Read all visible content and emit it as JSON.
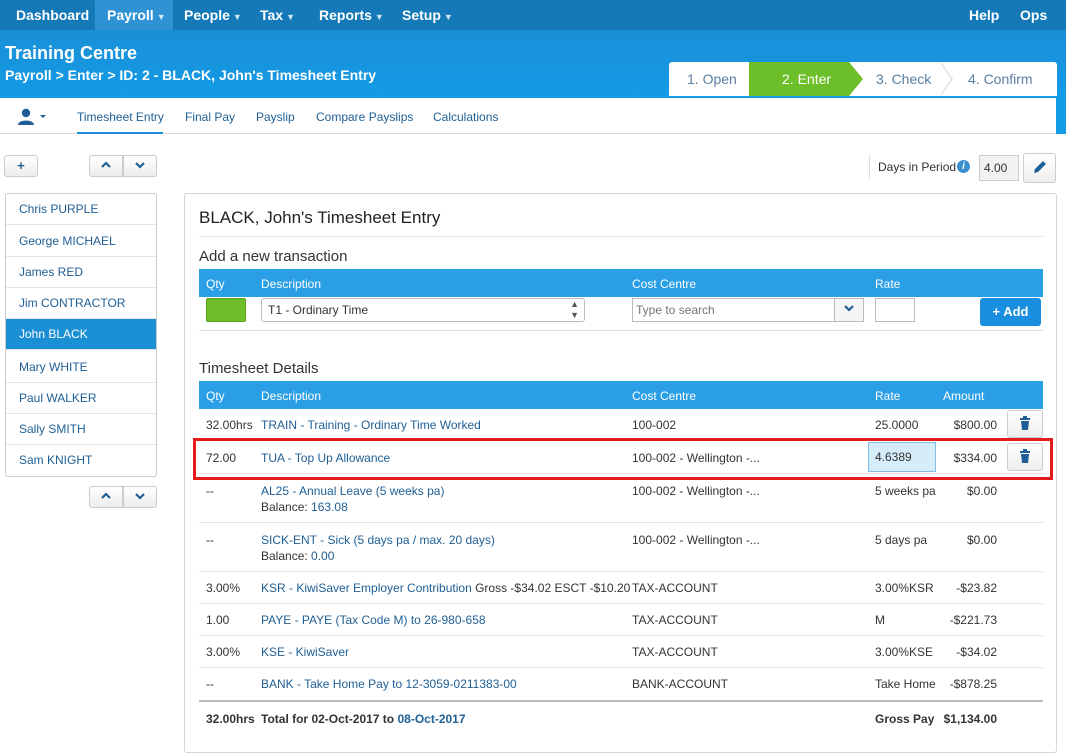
{
  "topnav": {
    "items": [
      {
        "label": "Dashboard",
        "has_caret": false
      },
      {
        "label": "Payroll",
        "has_caret": true
      },
      {
        "label": "People",
        "has_caret": true
      },
      {
        "label": "Tax",
        "has_caret": true
      },
      {
        "label": "Reports",
        "has_caret": true
      },
      {
        "label": "Setup",
        "has_caret": true
      }
    ],
    "right_items": [
      "Help",
      "Ops"
    ]
  },
  "header": {
    "title": "Training Centre",
    "breadcrumb": "Payroll > Enter > ID: 2 - BLACK, John's Timesheet Entry"
  },
  "steps": [
    "1. Open",
    "2. Enter",
    "3. Check",
    "4. Confirm"
  ],
  "subnav": {
    "tabs": [
      "Timesheet Entry",
      "Final Pay",
      "Payslip",
      "Compare Payslips",
      "Calculations"
    ]
  },
  "days_in_period": {
    "label": "Days in Period",
    "value": "4.00"
  },
  "employees": [
    "Chris PURPLE",
    "George MICHAEL",
    "James RED",
    "Jim CONTRACTOR",
    "John BLACK",
    "Mary WHITE",
    "Paul WALKER",
    "Sally SMITH",
    "Sam KNIGHT"
  ],
  "page_title": "BLACK, John's Timesheet Entry",
  "add_transaction": {
    "title": "Add a new transaction",
    "headers": {
      "qty": "Qty",
      "description": "Description",
      "cost_centre": "Cost Centre",
      "rate": "Rate"
    },
    "description_value": "T1 - Ordinary Time",
    "cost_centre_placeholder": "Type to search",
    "add_label": "+ Add"
  },
  "timesheet": {
    "title": "Timesheet Details",
    "headers": {
      "qty": "Qty",
      "description": "Description",
      "cost_centre": "Cost Centre",
      "rate": "Rate",
      "amount": "Amount"
    },
    "rows": [
      {
        "qty": "32.00hrs",
        "desc": "TRAIN - Training - Ordinary Time Worked",
        "desc_extra": "",
        "balance": "",
        "cost_centre": "100-002",
        "rate": "25.0000",
        "amount": "$800.00"
      },
      {
        "qty": "72.00",
        "desc": "TUA - Top Up Allowance",
        "desc_extra": "",
        "balance": "",
        "cost_centre": "100-002 - Wellington -...",
        "rate": "4.6389",
        "amount": "$334.00"
      },
      {
        "qty": "--",
        "desc": "AL25 - Annual Leave (5 weeks pa)",
        "desc_extra": "",
        "balance": "163.08",
        "cost_centre": "100-002 - Wellington -...",
        "rate": "5 weeks pa",
        "amount": "$0.00"
      },
      {
        "qty": "--",
        "desc": "SICK-ENT - Sick (5 days pa / max. 20 days)",
        "desc_extra": "",
        "balance": "0.00",
        "cost_centre": "100-002 - Wellington -...",
        "rate": "5 days pa",
        "amount": "$0.00"
      },
      {
        "qty": "3.00%",
        "desc": "KSR - KiwiSaver Employer Contribution",
        "desc_extra": "Gross -$34.02 ESCT -$10.20",
        "balance": "",
        "cost_centre": "TAX-ACCOUNT",
        "rate": "3.00%KSR",
        "amount": "-$23.82"
      },
      {
        "qty": "1.00",
        "desc": "PAYE - PAYE (Tax Code M) to 26-980-658",
        "desc_extra": "",
        "balance": "",
        "cost_centre": "TAX-ACCOUNT",
        "rate": "M",
        "amount": "-$221.73"
      },
      {
        "qty": "3.00%",
        "desc": "KSE - KiwiSaver",
        "desc_extra": "",
        "balance": "",
        "cost_centre": "TAX-ACCOUNT",
        "rate": "3.00%KSE",
        "amount": "-$34.02"
      },
      {
        "qty": "--",
        "desc": "BANK - Take Home Pay to 12-3059-0211383-00",
        "desc_extra": "",
        "balance": "",
        "cost_centre": "BANK-ACCOUNT",
        "rate": "Take Home",
        "amount": "-$878.25"
      }
    ],
    "balance_label": "Balance:",
    "total": {
      "qty": "32.00hrs",
      "label_prefix": "Total for 02-Oct-2017 to",
      "label_date": "08-Oct-2017",
      "gross_label": "Gross Pay",
      "gross_value": "$1,134.00"
    }
  }
}
